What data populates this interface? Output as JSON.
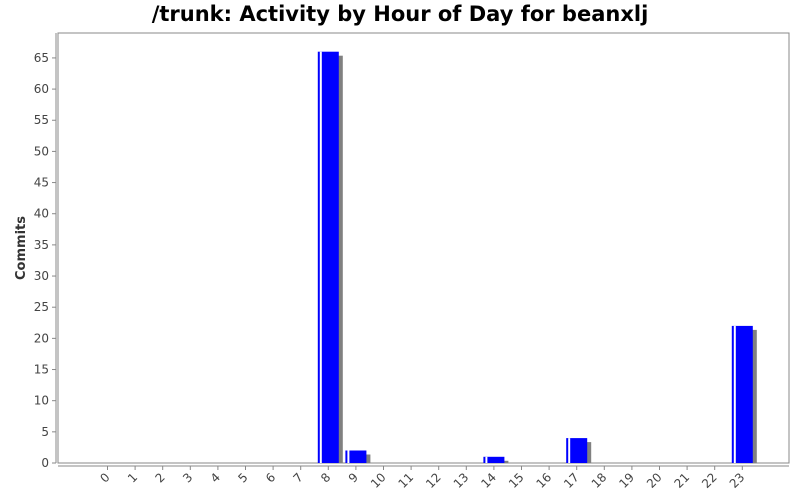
{
  "chart_data": {
    "type": "bar",
    "title": "/trunk: Activity by Hour of Day for beanxlj",
    "xlabel": "",
    "ylabel": "Commits",
    "categories": [
      "0",
      "1",
      "2",
      "3",
      "4",
      "5",
      "6",
      "7",
      "8",
      "9",
      "10",
      "11",
      "12",
      "13",
      "14",
      "15",
      "16",
      "17",
      "18",
      "19",
      "20",
      "21",
      "22",
      "23"
    ],
    "values": [
      0,
      0,
      0,
      0,
      0,
      0,
      0,
      0,
      66,
      2,
      0,
      0,
      0,
      0,
      1,
      0,
      0,
      4,
      0,
      0,
      0,
      0,
      0,
      22
    ],
    "ylim": [
      0,
      69
    ],
    "yticks": [
      0,
      5,
      10,
      15,
      20,
      25,
      30,
      35,
      40,
      45,
      50,
      55,
      60,
      65
    ],
    "bar_color": "#0000ff",
    "shadow_color": "#808080",
    "grid": false,
    "legend": "none"
  }
}
